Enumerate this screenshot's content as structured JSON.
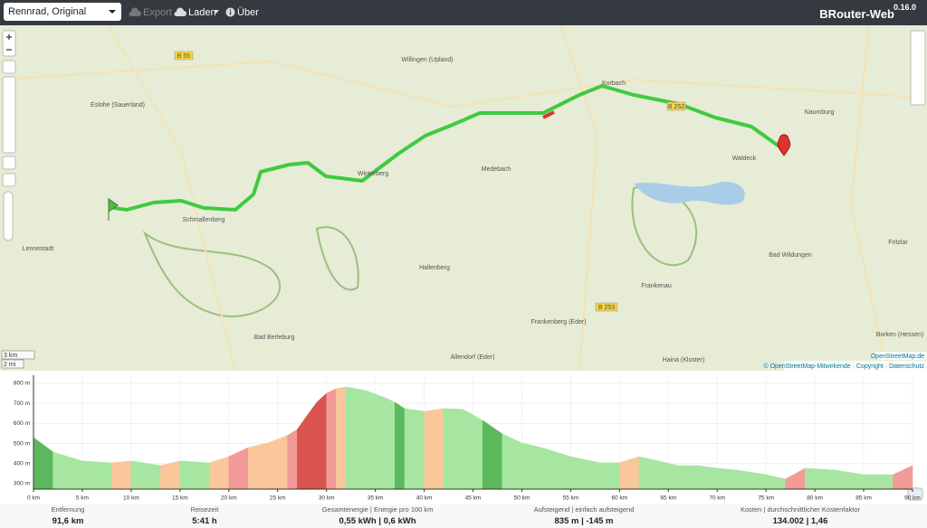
{
  "navbar": {
    "profile_select": "Rennrad, Original",
    "export": "Export",
    "load": "Laden",
    "about": "Über",
    "brand": "BRouter-Web",
    "version": "0.16.0"
  },
  "map": {
    "places": [
      "Willingen (Upland)",
      "Korbach",
      "Eslohe (Sauerland)",
      "Schmallenberg",
      "Winterberg",
      "Medebach",
      "Hallenberg",
      "Bad Berleburg",
      "Frankenberg (Eder)",
      "Allendorf (Eder)",
      "Haina (Kloster)",
      "Frankenau",
      "Waldeck",
      "Naumburg",
      "Bad Wildungen",
      "Fritzlar",
      "Borken (Hessen)",
      "Lennestadt"
    ],
    "roads": [
      "B 55",
      "B 253",
      "B 252"
    ],
    "scale": [
      "3 km",
      "2 mi"
    ],
    "attribution": "© OpenStreetMap-Mitwirkende · Copyright · Datenschutz",
    "tile_credit": "OpenStreetMap.de"
  },
  "elevation": {
    "type": "area",
    "x": [
      0,
      2,
      5,
      8,
      10,
      13,
      15,
      18,
      20,
      22,
      24,
      26,
      27,
      28,
      29,
      30,
      31,
      32,
      34,
      36,
      37,
      38,
      40,
      42,
      44,
      46,
      48,
      50,
      52,
      55,
      58,
      60,
      62,
      64,
      66,
      68,
      70,
      72,
      75,
      77,
      79,
      82,
      85,
      88,
      90
    ],
    "values": [
      530,
      458,
      413,
      404,
      413,
      390,
      413,
      404,
      435,
      480,
      503,
      540,
      570,
      638,
      705,
      750,
      773,
      782,
      764,
      728,
      705,
      674,
      660,
      674,
      670,
      615,
      548,
      503,
      480,
      435,
      404,
      404,
      435,
      413,
      390,
      390,
      377,
      368,
      345,
      323,
      377,
      368,
      345,
      345,
      390
    ],
    "xlim": [
      0,
      90
    ],
    "ylim": [
      273,
      840
    ],
    "yticks": [
      {
        "value": 300,
        "label": "300 m"
      },
      {
        "value": 400,
        "label": "400 m"
      },
      {
        "value": 500,
        "label": "500 m"
      },
      {
        "value": 600,
        "label": "600 m"
      },
      {
        "value": 700,
        "label": "700 m"
      },
      {
        "value": 800,
        "label": "800 m"
      }
    ],
    "xticks": [
      {
        "value": 0,
        "label": "0 km"
      },
      {
        "value": 5,
        "label": "5 km"
      },
      {
        "value": 10,
        "label": "10 km"
      },
      {
        "value": 15,
        "label": "15 km"
      },
      {
        "value": 20,
        "label": "20 km"
      },
      {
        "value": 25,
        "label": "25 km"
      },
      {
        "value": 30,
        "label": "30 km"
      },
      {
        "value": 35,
        "label": "35 km"
      },
      {
        "value": 40,
        "label": "40 km"
      },
      {
        "value": 45,
        "label": "45 km"
      },
      {
        "value": 50,
        "label": "50 km"
      },
      {
        "value": 55,
        "label": "55 km"
      },
      {
        "value": 60,
        "label": "60 km"
      },
      {
        "value": 65,
        "label": "65 km"
      },
      {
        "value": 70,
        "label": "70 km"
      },
      {
        "value": 75,
        "label": "75 km"
      },
      {
        "value": 80,
        "label": "80 km"
      },
      {
        "value": 85,
        "label": "85 km"
      },
      {
        "value": 90,
        "label": "90 km"
      }
    ],
    "grid": true
  },
  "stats": [
    {
      "label": "Entfernung",
      "value": "91,6 km"
    },
    {
      "label": "Reisezeit",
      "value": "5:41 h"
    },
    {
      "label": "Gesamtenergie | Energie pro 100 km",
      "value": "0,55 kWh | 0,6 kWh"
    },
    {
      "label": "Aufsteigend | einfach aufsteigend",
      "value": "835 m | -145 m"
    },
    {
      "label": "Kosten | durchschnittlicher Kostenfaktor",
      "value": "134.002 | 1,46"
    }
  ]
}
